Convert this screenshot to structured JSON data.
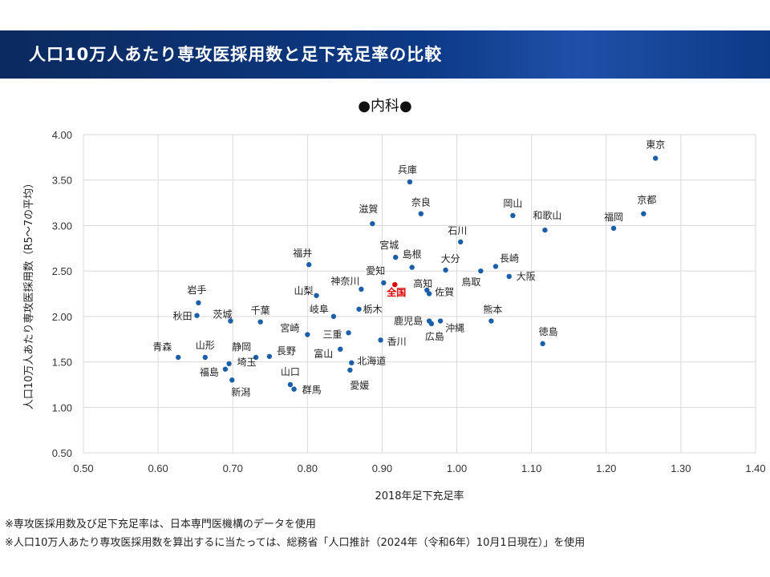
{
  "header": {
    "title": "人口10万人あたり専攻医採用数と足下充足率の比較"
  },
  "subtitle": "●内科●",
  "footnotes": [
    "※専攻医採用数及び足下充足率は、日本専門医機構のデータを使用",
    "※人口10万人あたり専攻医採用数を算出するに当たっては、総務省「人口推計（2024年（令和6年）10月1日現在）」を使用"
  ],
  "colors": {
    "point": "#1a5fa8",
    "highlight": "#e00000",
    "banner": "#0d3a86"
  },
  "chart_data": {
    "type": "scatter",
    "xlabel": "2018年足下充足率",
    "ylabel": "人口10万人あたり専攻医採用数（R5～7の平均）",
    "xlim": [
      0.5,
      1.4
    ],
    "ylim": [
      0.5,
      4.0
    ],
    "xticks": [
      "0.50",
      "0.60",
      "0.70",
      "0.80",
      "0.90",
      "1.00",
      "1.10",
      "1.20",
      "1.30",
      "1.40"
    ],
    "yticks": [
      "0.50",
      "1.00",
      "1.50",
      "2.00",
      "2.50",
      "3.00",
      "3.50",
      "4.00"
    ],
    "grid": true,
    "points": [
      {
        "label": "東京",
        "x": 1.266,
        "y": 3.74
      },
      {
        "label": "京都",
        "x": 1.25,
        "y": 3.13
      },
      {
        "label": "福岡",
        "x": 1.21,
        "y": 2.97
      },
      {
        "label": "兵庫",
        "x": 0.937,
        "y": 3.48
      },
      {
        "label": "奈良",
        "x": 0.952,
        "y": 3.13
      },
      {
        "label": "岡山",
        "x": 1.075,
        "y": 3.11
      },
      {
        "label": "和歌山",
        "x": 1.118,
        "y": 2.95
      },
      {
        "label": "滋賀",
        "x": 0.887,
        "y": 3.02
      },
      {
        "label": "石川",
        "x": 1.005,
        "y": 2.82
      },
      {
        "label": "宮城",
        "x": 0.918,
        "y": 2.65
      },
      {
        "label": "島根",
        "x": 0.94,
        "y": 2.54
      },
      {
        "label": "大分",
        "x": 0.985,
        "y": 2.51
      },
      {
        "label": "長崎",
        "x": 1.052,
        "y": 2.55
      },
      {
        "label": "鳥取",
        "x": 1.032,
        "y": 2.5
      },
      {
        "label": "大阪",
        "x": 1.07,
        "y": 2.44
      },
      {
        "label": "福井",
        "x": 0.802,
        "y": 2.57
      },
      {
        "label": "愛知",
        "x": 0.902,
        "y": 2.37
      },
      {
        "label": "全国",
        "x": 0.917,
        "y": 2.35,
        "highlight": true
      },
      {
        "label": "高知",
        "x": 0.96,
        "y": 2.29
      },
      {
        "label": "神奈川",
        "x": 0.872,
        "y": 2.3
      },
      {
        "label": "山梨",
        "x": 0.812,
        "y": 2.23
      },
      {
        "label": "佐賀",
        "x": 0.963,
        "y": 2.25
      },
      {
        "label": "岩手",
        "x": 0.654,
        "y": 2.15
      },
      {
        "label": "秋田",
        "x": 0.652,
        "y": 2.01
      },
      {
        "label": "茨城",
        "x": 0.697,
        "y": 1.95
      },
      {
        "label": "千葉",
        "x": 0.737,
        "y": 1.94
      },
      {
        "label": "岐阜",
        "x": 0.835,
        "y": 2.0
      },
      {
        "label": "栃木",
        "x": 0.869,
        "y": 2.08
      },
      {
        "label": "熊本",
        "x": 1.046,
        "y": 1.95
      },
      {
        "label": "鹿児島",
        "x": 0.963,
        "y": 1.95
      },
      {
        "label": "沖縄",
        "x": 0.978,
        "y": 1.95
      },
      {
        "label": "広島",
        "x": 0.966,
        "y": 1.92
      },
      {
        "label": "宮崎",
        "x": 0.8,
        "y": 1.8
      },
      {
        "label": "三重",
        "x": 0.855,
        "y": 1.82
      },
      {
        "label": "香川",
        "x": 0.898,
        "y": 1.74
      },
      {
        "label": "徳島",
        "x": 1.115,
        "y": 1.7
      },
      {
        "label": "富山",
        "x": 0.844,
        "y": 1.64
      },
      {
        "label": "北海道",
        "x": 0.859,
        "y": 1.49
      },
      {
        "label": "愛媛",
        "x": 0.857,
        "y": 1.41
      },
      {
        "label": "青森",
        "x": 0.627,
        "y": 1.55
      },
      {
        "label": "山形",
        "x": 0.663,
        "y": 1.55
      },
      {
        "label": "静岡",
        "x": 0.731,
        "y": 1.55
      },
      {
        "label": "長野",
        "x": 0.749,
        "y": 1.56
      },
      {
        "label": "福島",
        "x": 0.69,
        "y": 1.42
      },
      {
        "label": "埼玉",
        "x": 0.695,
        "y": 1.48
      },
      {
        "label": "新潟",
        "x": 0.699,
        "y": 1.3
      },
      {
        "label": "山口",
        "x": 0.777,
        "y": 1.25
      },
      {
        "label": "群馬",
        "x": 0.782,
        "y": 1.2
      }
    ]
  }
}
